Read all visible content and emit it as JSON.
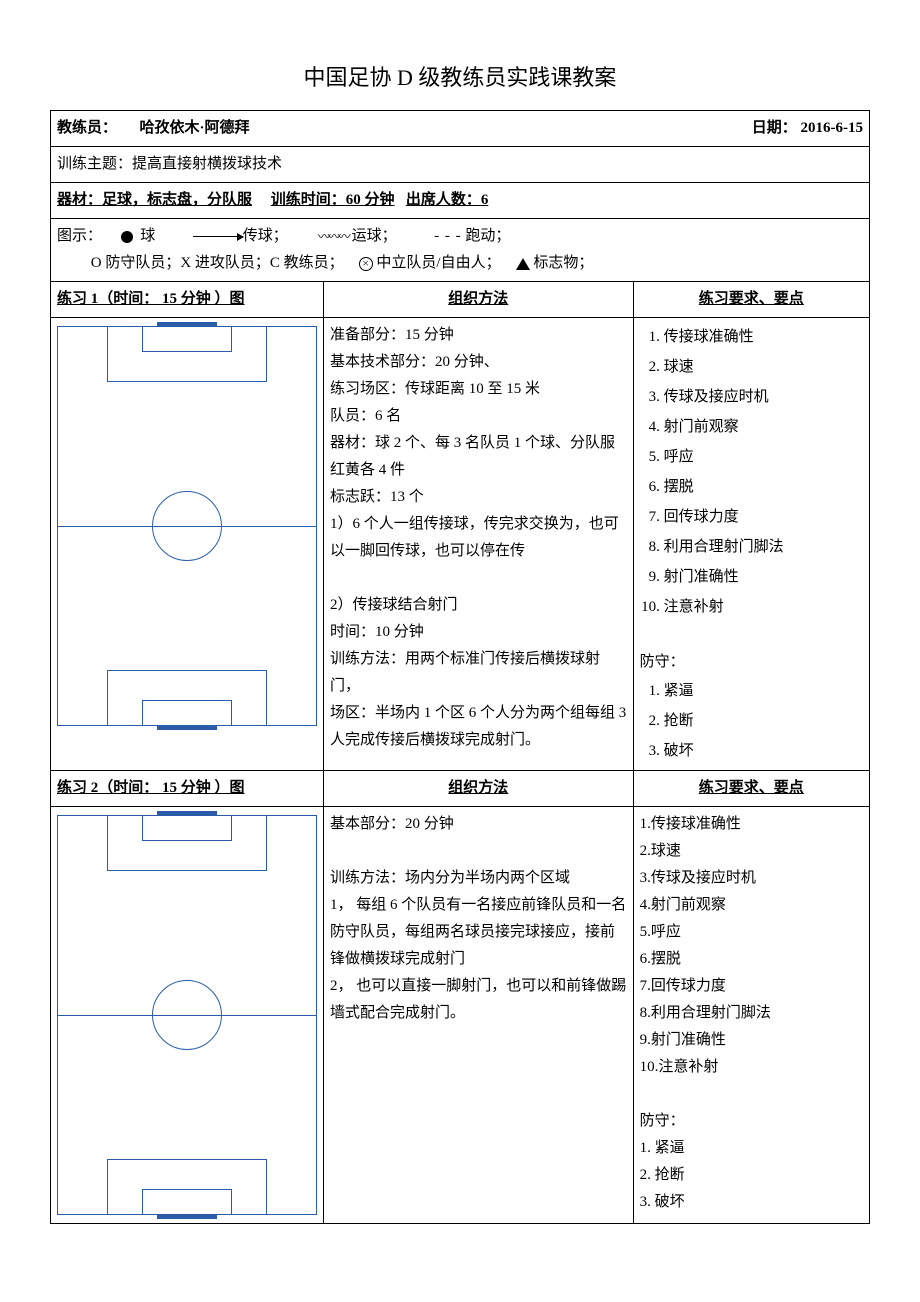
{
  "title": "中国足协 D 级教练员实践课教案",
  "header": {
    "coach_label": "教练员：",
    "coach_name": "哈孜依木·阿德拜",
    "date_label": "日期：",
    "date_value": "2016-6-15"
  },
  "theme": {
    "label": "训练主题：",
    "value": "提高直接射横拨球技术"
  },
  "equipment": {
    "label": "器材：",
    "value": "足球，标志盘，分队服",
    "time_label": "训练时间：",
    "time_value": "60 分钟",
    "attend_label": "出席人数：",
    "attend_value": "6"
  },
  "legend": {
    "label": "图示：",
    "ball": "球",
    "pass": "传球；",
    "dribble": "运球；",
    "run": "跑动；",
    "line2": "O  防守队员；X  进攻队员；C  教练员；",
    "neutral": "中立队员/自由人；",
    "marker": "标志物；"
  },
  "ex1": {
    "header_diagram": "练习 1（时间：    15 分钟    ）图",
    "header_method": "组织方法",
    "header_points": "练习要求、要点",
    "method_lines": [
      "  准备部分：15 分钟",
      "基本技术部分：20 分钟、",
      "练习场区：传球距离 10 至 15 米",
      "队员：6 名",
      "器材：球 2 个、每 3 名队员 1 个球、分队服红黄各 4 件",
      "标志跃：13 个",
      "1）6 个人一组传接球，传完求交换为，也可以一脚回传球，也可以停在传",
      "",
      "2）传接球结合射门",
      "时间：10 分钟",
      "训练方法：用两个标准门传接后横拨球射门，",
      "场区：半场内 1 个区 6 个人分为两个组每组 3 人完成传接后横拨球完成射门。"
    ],
    "points_attack": [
      "传接球准确性",
      "球速",
      "传球及接应时机",
      "射门前观察",
      "呼应",
      "摆脱",
      "回传球力度",
      "利用合理射门脚法",
      "射门准确性",
      "注意补射"
    ],
    "defense_label": "防守：",
    "points_defense": [
      "紧逼",
      "抢断",
      "破坏"
    ]
  },
  "ex2": {
    "header_diagram": "练习 2（时间：    15 分钟    ）图",
    "header_method": "组织方法",
    "header_points": "练习要求、要点",
    "method_lines": [
      "基本部分：20 分钟",
      "",
      "训练方法：场内分为半场内两个区域",
      "1， 每组 6 个队员有一名接应前锋队员和一名防守队员，每组两名球员接完球接应，接前锋做横拨球完成射门",
      "2， 也可以直接一脚射门，也可以和前锋做踢墙式配合完成射门。"
    ],
    "points_attack": [
      "传接球准确性",
      "球速",
      "传球及接应时机",
      "射门前观察",
      "呼应",
      "摆脱",
      "回传球力度",
      "利用合理射门脚法",
      "射门准确性",
      "注意补射"
    ],
    "defense_label": "防守：",
    "points_defense": [
      "紧逼",
      "抢断",
      "破坏"
    ]
  },
  "field_style": {
    "border_color": "#2a5caa"
  }
}
